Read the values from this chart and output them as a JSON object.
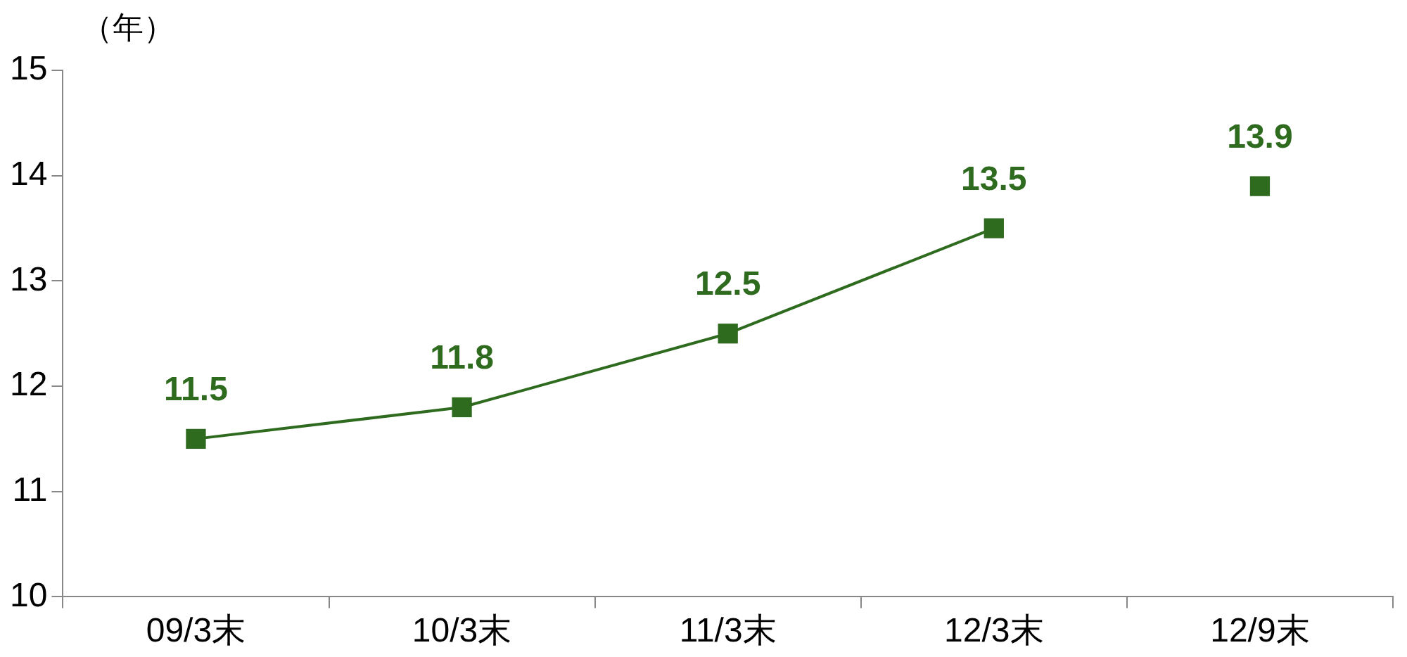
{
  "chart_data": {
    "type": "line",
    "ylabel": "（年）",
    "categories": [
      "09/3末",
      "10/3末",
      "11/3末",
      "12/3末",
      "12/9末"
    ],
    "series": [
      {
        "color": "#2e6b1f",
        "values": [
          11.5,
          11.8,
          12.5,
          13.5,
          null
        ]
      },
      {
        "type": "scatter",
        "color": "#2e6b1f",
        "values": [
          null,
          null,
          null,
          null,
          13.9
        ]
      }
    ],
    "ylim": [
      10,
      15
    ],
    "yticks": [
      10,
      11,
      12,
      13,
      14,
      15
    ],
    "grid": false,
    "legend": false,
    "marker": "square",
    "line_style": "solid",
    "data_labels": true
  }
}
